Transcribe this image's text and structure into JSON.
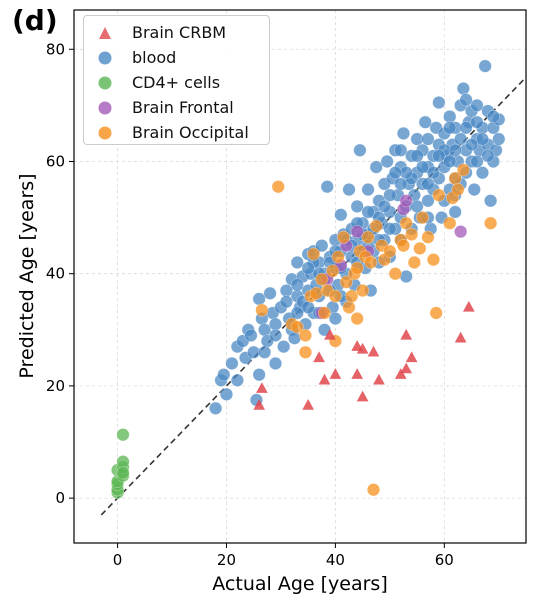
{
  "panel_label": "(d)",
  "colors": {
    "brain_crbm": "#e0474c",
    "blood": "#4a88c4",
    "cd4": "#5ab552",
    "brain_frontal": "#a45ab8",
    "brain_occipital": "#f7901e",
    "identity_line": "#333333",
    "grid": "#d9d9d9"
  },
  "chart_data": {
    "type": "scatter",
    "title": "",
    "xlabel": "Actual Age [years]",
    "ylabel": "Predicted Age [years]",
    "xlim": [
      -8,
      75
    ],
    "ylim": [
      -8,
      87
    ],
    "xticks": [
      0,
      20,
      40,
      60
    ],
    "yticks": [
      0,
      20,
      40,
      60,
      80
    ],
    "grid": true,
    "legend_position": "top-left",
    "identity_line": {
      "x": [
        -3,
        75
      ],
      "y": [
        -3,
        75
      ],
      "style": "dashed"
    },
    "series": [
      {
        "name": "Brain CRBM",
        "marker": "triangle",
        "color": "#e0474c",
        "points": [
          [
            26,
            16.5
          ],
          [
            26.5,
            19.5
          ],
          [
            35,
            16.5
          ],
          [
            37,
            25
          ],
          [
            38,
            21
          ],
          [
            39,
            29
          ],
          [
            40,
            22
          ],
          [
            44,
            22
          ],
          [
            44,
            27
          ],
          [
            45,
            18
          ],
          [
            45,
            26.5
          ],
          [
            47,
            26
          ],
          [
            48,
            21
          ],
          [
            52,
            22
          ],
          [
            53,
            23
          ],
          [
            53,
            29
          ],
          [
            54,
            25
          ],
          [
            63,
            28.5
          ],
          [
            64.5,
            34
          ]
        ]
      },
      {
        "name": "blood",
        "marker": "circle",
        "color": "#4a88c4",
        "points": [
          [
            18,
            16
          ],
          [
            19,
            21
          ],
          [
            19.5,
            22
          ],
          [
            20,
            18.5
          ],
          [
            21,
            24
          ],
          [
            22,
            21
          ],
          [
            22,
            27
          ],
          [
            23,
            28
          ],
          [
            23.5,
            25
          ],
          [
            24,
            30
          ],
          [
            24.5,
            29
          ],
          [
            25,
            26
          ],
          [
            25.5,
            17.5
          ],
          [
            26,
            22
          ],
          [
            26,
            35.5
          ],
          [
            26.5,
            32
          ],
          [
            27,
            30
          ],
          [
            27.5,
            28
          ],
          [
            28,
            36.5
          ],
          [
            28.5,
            33
          ],
          [
            29,
            31
          ],
          [
            29,
            24
          ],
          [
            30,
            34
          ],
          [
            30.5,
            27
          ],
          [
            31,
            37
          ],
          [
            31.5,
            32
          ],
          [
            32,
            30
          ],
          [
            32,
            39
          ],
          [
            32.5,
            28.5
          ],
          [
            33,
            36
          ],
          [
            33,
            42
          ],
          [
            33.5,
            34
          ],
          [
            34,
            39.5
          ],
          [
            34.5,
            31
          ],
          [
            35,
            37
          ],
          [
            35,
            43.5
          ],
          [
            35.5,
            40
          ],
          [
            36,
            33
          ],
          [
            36,
            44
          ],
          [
            36.5,
            38
          ],
          [
            37,
            36
          ],
          [
            37,
            42
          ],
          [
            37.5,
            45
          ],
          [
            38,
            30
          ],
          [
            38,
            39
          ],
          [
            38.5,
            55.5
          ],
          [
            39,
            43
          ],
          [
            39.5,
            34
          ],
          [
            40,
            41
          ],
          [
            40,
            46
          ],
          [
            40,
            32
          ],
          [
            40.5,
            38
          ],
          [
            41,
            50.5
          ],
          [
            41,
            44
          ],
          [
            41.5,
            47
          ],
          [
            42,
            35
          ],
          [
            42,
            40
          ],
          [
            42.5,
            55
          ],
          [
            43,
            43
          ],
          [
            43,
            48
          ],
          [
            43.5,
            38
          ],
          [
            44,
            46
          ],
          [
            44,
            52
          ],
          [
            44.5,
            62
          ],
          [
            45,
            44
          ],
          [
            45,
            49
          ],
          [
            45.5,
            41
          ],
          [
            46,
            55
          ],
          [
            46,
            47
          ],
          [
            46.5,
            37
          ],
          [
            47,
            51
          ],
          [
            47,
            44
          ],
          [
            47.5,
            59
          ],
          [
            48,
            42
          ],
          [
            48,
            53
          ],
          [
            48.5,
            49
          ],
          [
            49,
            56
          ],
          [
            49,
            46
          ],
          [
            49.5,
            60
          ],
          [
            50,
            51
          ],
          [
            50,
            43
          ],
          [
            50.5,
            57
          ],
          [
            51,
            48
          ],
          [
            51,
            62
          ],
          [
            51.5,
            54
          ],
          [
            52,
            46
          ],
          [
            52,
            59
          ],
          [
            52.5,
            65
          ],
          [
            53,
            52
          ],
          [
            53,
            39.5
          ],
          [
            53.5,
            56
          ],
          [
            54,
            61
          ],
          [
            54,
            48
          ],
          [
            54.5,
            54
          ],
          [
            55,
            58
          ],
          [
            55,
            64
          ],
          [
            55.5,
            50
          ],
          [
            56,
            56
          ],
          [
            56,
            62
          ],
          [
            56.5,
            67
          ],
          [
            57,
            53
          ],
          [
            57,
            59
          ],
          [
            57.5,
            48
          ],
          [
            58,
            61
          ],
          [
            58,
            55
          ],
          [
            58.5,
            66
          ],
          [
            59,
            57
          ],
          [
            59,
            63
          ],
          [
            59,
            70.5
          ],
          [
            59.5,
            50
          ],
          [
            60,
            59
          ],
          [
            60,
            65
          ],
          [
            60.5,
            61
          ],
          [
            61,
            55
          ],
          [
            61,
            68
          ],
          [
            61.5,
            63
          ],
          [
            62,
            57
          ],
          [
            62,
            66
          ],
          [
            62,
            51
          ],
          [
            62.5,
            60
          ],
          [
            63,
            64
          ],
          [
            63,
            70
          ],
          [
            63.5,
            73
          ],
          [
            64,
            58
          ],
          [
            64,
            62
          ],
          [
            64.5,
            67
          ],
          [
            65,
            60
          ],
          [
            65,
            69
          ],
          [
            65.5,
            55
          ],
          [
            66,
            64
          ],
          [
            66,
            70
          ],
          [
            66.5,
            62
          ],
          [
            67,
            66
          ],
          [
            67,
            58
          ],
          [
            67.5,
            77
          ],
          [
            68,
            63
          ],
          [
            68,
            69
          ],
          [
            68.5,
            53
          ],
          [
            69,
            60
          ],
          [
            69,
            66
          ],
          [
            69.5,
            62
          ],
          [
            70,
            64
          ],
          [
            70,
            67.5
          ],
          [
            52,
            56
          ],
          [
            50,
            54
          ],
          [
            48,
            50
          ],
          [
            46,
            45
          ],
          [
            44,
            42
          ],
          [
            42,
            46
          ],
          [
            40,
            44
          ],
          [
            38,
            40
          ],
          [
            36,
            42
          ],
          [
            34,
            35
          ],
          [
            55,
            52
          ],
          [
            57,
            50
          ],
          [
            60,
            62
          ],
          [
            62,
            54
          ],
          [
            64,
            66
          ],
          [
            66,
            60
          ],
          [
            67,
            64
          ],
          [
            63,
            56
          ],
          [
            58,
            58
          ],
          [
            56,
            59
          ],
          [
            54,
            57
          ],
          [
            52,
            50
          ],
          [
            50,
            48
          ],
          [
            48,
            46
          ],
          [
            46,
            51
          ],
          [
            44,
            49
          ],
          [
            41,
            36
          ],
          [
            39,
            37
          ],
          [
            37,
            33
          ],
          [
            35,
            34
          ],
          [
            33,
            33
          ],
          [
            31,
            35
          ],
          [
            29,
            29
          ],
          [
            27,
            26
          ],
          [
            57,
            64
          ],
          [
            59,
            61
          ],
          [
            61,
            60
          ],
          [
            65,
            63
          ],
          [
            68,
            61
          ],
          [
            69,
            68
          ],
          [
            66,
            67
          ],
          [
            61,
            66
          ],
          [
            55,
            61
          ],
          [
            53,
            58
          ],
          [
            51,
            58
          ],
          [
            49,
            52
          ],
          [
            47,
            48
          ],
          [
            45,
            47
          ],
          [
            43,
            45
          ],
          [
            41,
            41
          ],
          [
            39,
            42
          ],
          [
            37,
            40
          ],
          [
            35,
            41
          ],
          [
            33,
            38
          ],
          [
            60,
            53
          ],
          [
            62,
            62
          ],
          [
            64,
            71
          ],
          [
            57,
            56
          ],
          [
            52,
            62
          ]
        ]
      },
      {
        "name": "CD4+ cells",
        "marker": "circle",
        "color": "#5ab552",
        "points": [
          [
            0,
            1
          ],
          [
            0,
            1.5
          ],
          [
            0,
            2.5
          ],
          [
            0,
            3
          ],
          [
            0,
            5
          ],
          [
            1,
            4
          ],
          [
            1,
            5.5
          ],
          [
            1,
            6.5
          ],
          [
            1,
            11.3
          ],
          [
            1,
            4.5
          ]
        ]
      },
      {
        "name": "Brain Frontal",
        "marker": "circle",
        "color": "#a45ab8",
        "points": [
          [
            37.5,
            33
          ],
          [
            38.5,
            39
          ],
          [
            41,
            41.5
          ],
          [
            42,
            45
          ],
          [
            44,
            47.5
          ],
          [
            46,
            44
          ],
          [
            52.5,
            51.5
          ],
          [
            53,
            53
          ],
          [
            63,
            47.5
          ]
        ]
      },
      {
        "name": "Brain Occipital",
        "marker": "circle",
        "color": "#f7901e",
        "points": [
          [
            26.5,
            33.5
          ],
          [
            29.5,
            55.5
          ],
          [
            32,
            31
          ],
          [
            33,
            30.5
          ],
          [
            34.5,
            26
          ],
          [
            34.5,
            29
          ],
          [
            35.5,
            36
          ],
          [
            36,
            43.5
          ],
          [
            36.5,
            36.5
          ],
          [
            37.5,
            39
          ],
          [
            38,
            33
          ],
          [
            38.5,
            37
          ],
          [
            39.5,
            40.5
          ],
          [
            40,
            28
          ],
          [
            40,
            36
          ],
          [
            40.5,
            43
          ],
          [
            41.5,
            46.5
          ],
          [
            42,
            38.5
          ],
          [
            42.5,
            34
          ],
          [
            43,
            36
          ],
          [
            43.5,
            40
          ],
          [
            44,
            32
          ],
          [
            44,
            41
          ],
          [
            44.5,
            44
          ],
          [
            45,
            37
          ],
          [
            45.5,
            43
          ],
          [
            46,
            46.5
          ],
          [
            46.5,
            42
          ],
          [
            47,
            1.5
          ],
          [
            47.5,
            48.5
          ],
          [
            48.5,
            45
          ],
          [
            49,
            42.5
          ],
          [
            50,
            44
          ],
          [
            51,
            40
          ],
          [
            52,
            46
          ],
          [
            52.5,
            45
          ],
          [
            53,
            49
          ],
          [
            54,
            47
          ],
          [
            54.5,
            42
          ],
          [
            55.5,
            44.5
          ],
          [
            56,
            50
          ],
          [
            57,
            46.5
          ],
          [
            58,
            42.5
          ],
          [
            58.5,
            33
          ],
          [
            59,
            54
          ],
          [
            61,
            49
          ],
          [
            61.5,
            53.5
          ],
          [
            62,
            57
          ],
          [
            62.5,
            55
          ],
          [
            63.5,
            58.5
          ],
          [
            68.5,
            49
          ]
        ]
      }
    ]
  }
}
